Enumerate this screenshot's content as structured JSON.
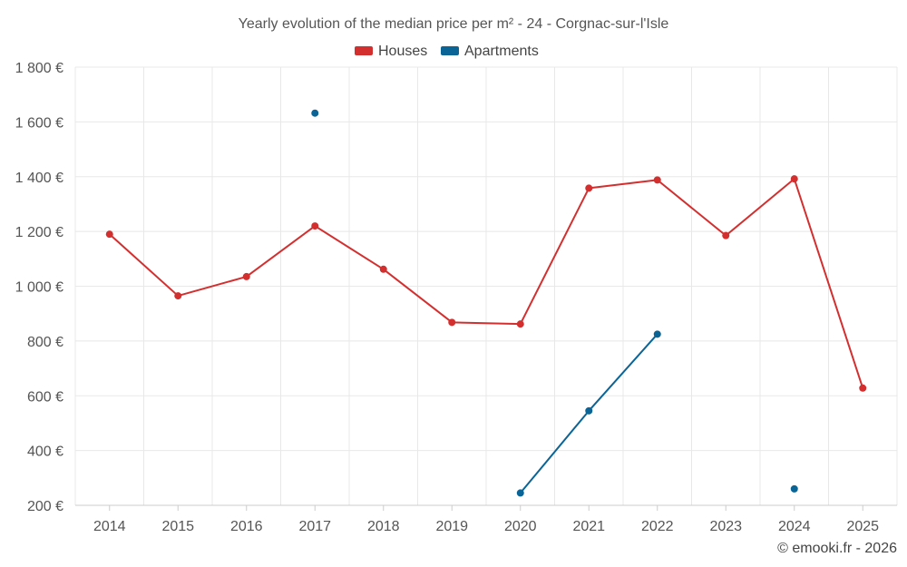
{
  "chart_data": {
    "type": "line",
    "title": "Yearly evolution of the median price per m² - 24 - Corgnac-sur-l'Isle",
    "x": [
      "2014",
      "2015",
      "2016",
      "2017",
      "2018",
      "2019",
      "2020",
      "2021",
      "2022",
      "2023",
      "2024",
      "2025"
    ],
    "ylim": [
      200,
      1800
    ],
    "yticks": [
      200,
      400,
      600,
      800,
      1000,
      1200,
      1400,
      1600,
      1800
    ],
    "ytick_labels": [
      "200 €",
      "400 €",
      "600 €",
      "800 €",
      "1 000 €",
      "1 200 €",
      "1 400 €",
      "1 600 €",
      "1 800 €"
    ],
    "grid": true,
    "legend_position": "top-center",
    "series": [
      {
        "name": "Houses",
        "color": "#d32f2f",
        "values": [
          1190,
          965,
          1035,
          1220,
          1062,
          868,
          862,
          1358,
          1388,
          1185,
          1392,
          628
        ]
      },
      {
        "name": "Apartments",
        "color": "#0a6496",
        "values": [
          null,
          null,
          null,
          1632,
          null,
          null,
          245,
          545,
          825,
          null,
          260,
          null
        ]
      }
    ],
    "credit": "© emooki.fr - 2026"
  }
}
